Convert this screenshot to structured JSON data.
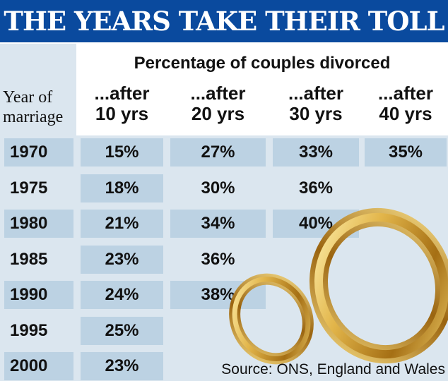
{
  "title": "THE YEARS TAKE THEIR TOLL",
  "subtitle": "Percentage of couples divorced",
  "year_header": [
    "Year of",
    "marriage"
  ],
  "source": "Source: ONS, England and Wales",
  "chart_data": {
    "type": "table",
    "title": "THE YEARS TAKE THEIR TOLL",
    "subtitle": "Percentage of couples divorced",
    "row_header": "Year of marriage",
    "columns": [
      {
        "line1": "...after",
        "line2": "10 yrs"
      },
      {
        "line1": "...after",
        "line2": "20 yrs"
      },
      {
        "line1": "...after",
        "line2": "30 yrs"
      },
      {
        "line1": "...after",
        "line2": "40 yrs"
      }
    ],
    "rows": [
      {
        "year": "1970",
        "values": [
          "15%",
          "27%",
          "33%",
          "35%"
        ]
      },
      {
        "year": "1975",
        "values": [
          "18%",
          "30%",
          "36%",
          null
        ]
      },
      {
        "year": "1980",
        "values": [
          "21%",
          "34%",
          "40%",
          null
        ]
      },
      {
        "year": "1985",
        "values": [
          "23%",
          "36%",
          null,
          null
        ]
      },
      {
        "year": "1990",
        "values": [
          "24%",
          "38%",
          null,
          null
        ]
      },
      {
        "year": "1995",
        "values": [
          "25%",
          null,
          null,
          null
        ]
      },
      {
        "year": "2000",
        "values": [
          "23%",
          null,
          null,
          null
        ]
      }
    ],
    "source": "Source: ONS, England and Wales"
  },
  "colors": {
    "title_bar": "#0a4a9e",
    "panel": "#dbe6ef",
    "shaded_cell": "#bcd2e3",
    "ring_gold": "#c99a2e"
  },
  "decoration": "gold-wedding-rings"
}
